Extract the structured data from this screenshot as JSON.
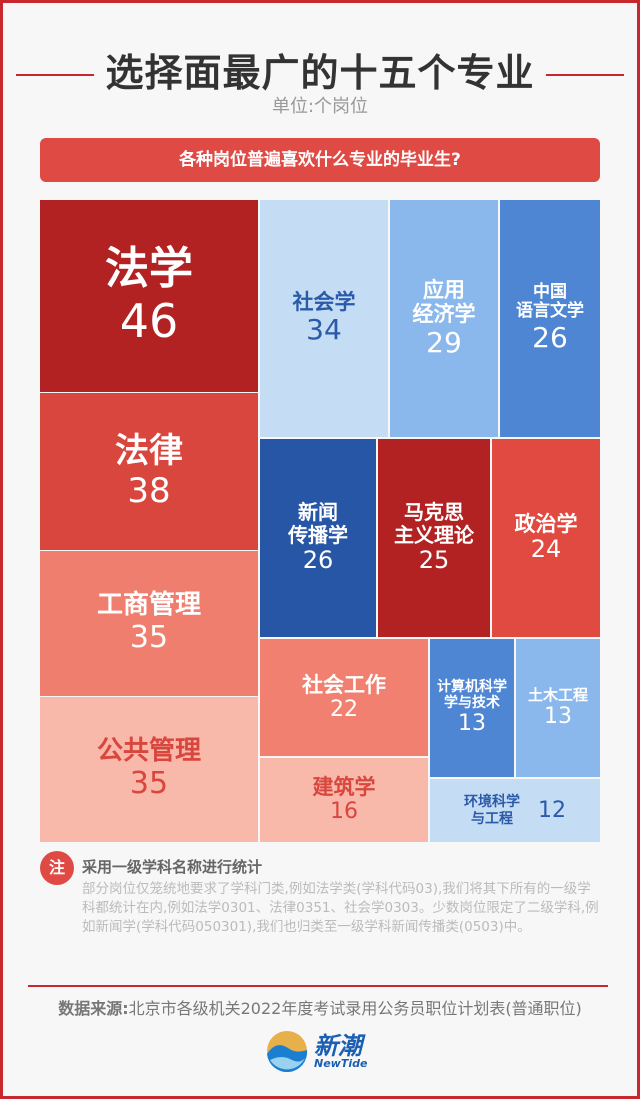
{
  "header": {
    "title": "选择面最广的十五个专业",
    "unit": "单位:个岗位",
    "banner": "各种岗位普遍喜欢什么专业的毕业生?"
  },
  "chart_data": {
    "type": "treemap",
    "title": "选择面最广的十五个专业",
    "unit": "个岗位",
    "items": [
      {
        "name": "法学",
        "value": 46,
        "color": "#b22222",
        "text_color": "#ffffff"
      },
      {
        "name": "法律",
        "value": 38,
        "color": "#d9463e",
        "text_color": "#ffffff"
      },
      {
        "name": "工商管理",
        "value": 35,
        "color": "#ef7e6f",
        "text_color": "#ffffff"
      },
      {
        "name": "公共管理",
        "value": 35,
        "color": "#f8b8aa",
        "text_color": "#d9463e"
      },
      {
        "name": "社会学",
        "value": 34,
        "color": "#c5dcf5",
        "text_color": "#2a5aa8"
      },
      {
        "name": "应用\n经济学",
        "value": 29,
        "color": "#8ab8ec",
        "text_color": "#ffffff"
      },
      {
        "name": "中国\n语言文学",
        "value": 26,
        "color": "#4e86d4",
        "text_color": "#ffffff"
      },
      {
        "name": "新闻\n传播学",
        "value": 26,
        "color": "#2856a6",
        "text_color": "#ffffff"
      },
      {
        "name": "马克思\n主义理论",
        "value": 25,
        "color": "#b22222",
        "text_color": "#ffffff"
      },
      {
        "name": "政治学",
        "value": 24,
        "color": "#e04a40",
        "text_color": "#ffffff"
      },
      {
        "name": "社会工作",
        "value": 22,
        "color": "#f18070",
        "text_color": "#ffffff"
      },
      {
        "name": "建筑学",
        "value": 16,
        "color": "#f8b8aa",
        "text_color": "#d9463e"
      },
      {
        "name": "计算机科学\n学与技术",
        "value": 13,
        "color": "#4e86d4",
        "text_color": "#ffffff"
      },
      {
        "name": "土木工程",
        "value": 13,
        "color": "#8ab8ec",
        "text_color": "#ffffff"
      },
      {
        "name": "环境科学\n与工程",
        "value": 12,
        "color": "#c5dcf5",
        "text_color": "#2a5aa8"
      }
    ]
  },
  "note": {
    "badge": "注",
    "title": "采用一级学科名称进行统计",
    "body": "部分岗位仅笼统地要求了学科门类,例如法学类(学科代码03),我们将其下所有的一级学科都统计在内,例如法学0301、法律0351、社会学0303。少数岗位限定了二级学科,例如新闻学(学科代码050301),我们也归类至一级学科新闻传播类(0503)中。"
  },
  "footer": {
    "source_label": "数据来源:",
    "source": "北京市各级机关2022年度考试录用公务员职位计划表(普通职位)",
    "logo_cn": "新潮",
    "logo_en": "NewTide"
  }
}
